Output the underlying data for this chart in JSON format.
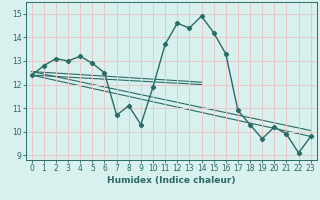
{
  "title": "",
  "xlabel": "Humidex (Indice chaleur)",
  "ylabel": "",
  "bg_color": "#d8f0ee",
  "grid_color": "#e8c8c8",
  "line_color": "#2a6b65",
  "xlim": [
    -0.5,
    23.5
  ],
  "ylim": [
    8.8,
    15.5
  ],
  "yticks": [
    9,
    10,
    11,
    12,
    13,
    14,
    15
  ],
  "xticks": [
    0,
    1,
    2,
    3,
    4,
    5,
    6,
    7,
    8,
    9,
    10,
    11,
    12,
    13,
    14,
    15,
    16,
    17,
    18,
    19,
    20,
    21,
    22,
    23
  ],
  "main_y": [
    12.4,
    12.8,
    13.1,
    13.0,
    13.2,
    12.9,
    12.5,
    10.7,
    11.1,
    10.3,
    11.9,
    13.7,
    14.6,
    14.4,
    14.9,
    14.2,
    13.3,
    10.9,
    10.3,
    9.7,
    10.2,
    9.9,
    9.1,
    9.8
  ],
  "trend_lines": [
    {
      "x": [
        0,
        23
      ],
      "y": [
        12.4,
        9.8
      ]
    },
    {
      "x": [
        0,
        23
      ],
      "y": [
        12.55,
        10.05
      ]
    },
    {
      "x": [
        0,
        14
      ],
      "y": [
        12.4,
        12.0
      ]
    },
    {
      "x": [
        0,
        14
      ],
      "y": [
        12.55,
        12.1
      ]
    }
  ]
}
